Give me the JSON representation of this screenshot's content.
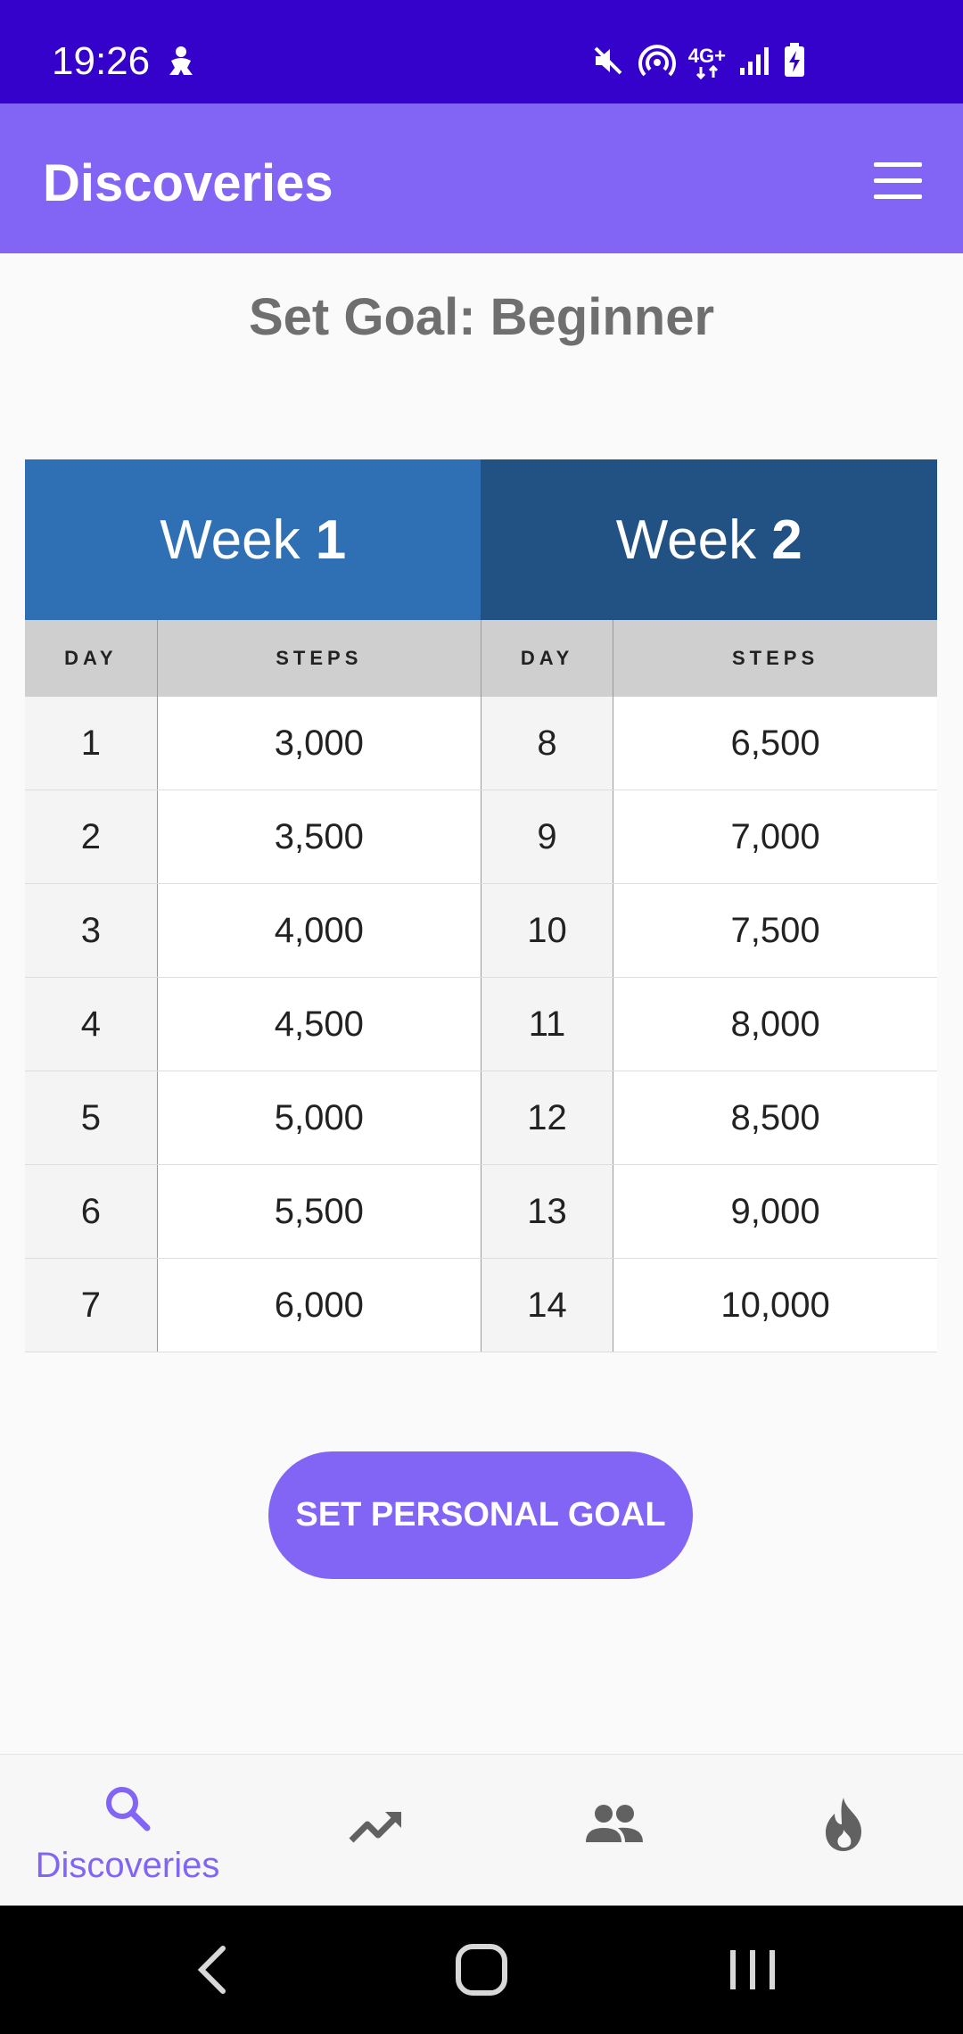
{
  "status_bar": {
    "time": "19:26",
    "network_label": "4G+",
    "icons": [
      "person-icon",
      "mute-icon",
      "hotspot-icon",
      "network-4g-icon",
      "signal-icon",
      "battery-charging-icon"
    ],
    "background_color": "#3502cc"
  },
  "app_bar": {
    "title": "Discoveries",
    "menu_icon": "hamburger-menu-icon",
    "background_color": "#8265f4"
  },
  "page": {
    "title": "Set Goal: Beginner"
  },
  "table": {
    "weeks": [
      {
        "prefix": "Week ",
        "number": "1",
        "color": "#2f6fb4"
      },
      {
        "prefix": "Week ",
        "number": "2",
        "color": "#225283"
      }
    ],
    "headers": {
      "day": "DAY",
      "steps": "STEPS"
    },
    "rows": [
      {
        "day1": "1",
        "steps1": "3,000",
        "day2": "8",
        "steps2": "6,500"
      },
      {
        "day1": "2",
        "steps1": "3,500",
        "day2": "9",
        "steps2": "7,000"
      },
      {
        "day1": "3",
        "steps1": "4,000",
        "day2": "10",
        "steps2": "7,500"
      },
      {
        "day1": "4",
        "steps1": "4,500",
        "day2": "11",
        "steps2": "8,000"
      },
      {
        "day1": "5",
        "steps1": "5,000",
        "day2": "12",
        "steps2": "8,500"
      },
      {
        "day1": "6",
        "steps1": "5,500",
        "day2": "13",
        "steps2": "9,000"
      },
      {
        "day1": "7",
        "steps1": "6,000",
        "day2": "14",
        "steps2": "10,000"
      }
    ]
  },
  "actions": {
    "set_personal_goal": "SET PERSONAL GOAL"
  },
  "bottom_nav": {
    "items": [
      {
        "icon": "search-icon",
        "label": "Discoveries",
        "active": true
      },
      {
        "icon": "trending-up-icon",
        "label": "",
        "active": false
      },
      {
        "icon": "people-icon",
        "label": "",
        "active": false
      },
      {
        "icon": "flame-icon",
        "label": "",
        "active": false
      }
    ],
    "active_color": "#8265f4",
    "inactive_color": "#616161"
  },
  "system_nav": {
    "buttons": [
      "back-icon",
      "home-icon",
      "recents-icon"
    ]
  }
}
